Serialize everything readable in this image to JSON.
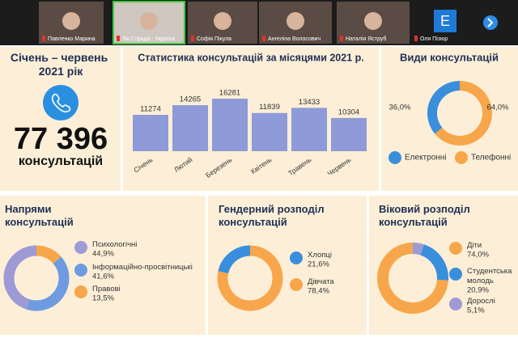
{
  "participants": [
    {
      "name": "Павленко Марина"
    },
    {
      "name": "Ля Страда - Україна"
    },
    {
      "name": "Софія Пікула"
    },
    {
      "name": "Ангеліна Волосович"
    },
    {
      "name": "Наталія Яструб"
    },
    {
      "name": "Оля Пізюр",
      "initial": "E"
    }
  ],
  "header": {
    "period": "Січень – червень 2021 рік",
    "total": "77 396",
    "total_label": "консультацій"
  },
  "chart_data": [
    {
      "type": "bar",
      "title": "Статистика консультацій за місяцями 2021 р.",
      "categories": [
        "Січень",
        "Лютий",
        "Березень",
        "Квітень",
        "Травень",
        "Червень"
      ],
      "values": [
        11274,
        14265,
        16281,
        11839,
        13433,
        10304
      ],
      "color": "#8e9bd8"
    },
    {
      "type": "pie",
      "title": "Види консультацій",
      "categories": [
        "Електронні",
        "Телефонні"
      ],
      "values": [
        36.0,
        64.0
      ],
      "value_labels": [
        "36,0%",
        "64,0%"
      ],
      "colors": [
        "#3a8fdc",
        "#f7a64c"
      ]
    },
    {
      "type": "pie",
      "title": "Напрями консультацій",
      "categories": [
        "Психологічні",
        "Інформаційно-просвітницькі",
        "Правові"
      ],
      "values": [
        44.9,
        41.6,
        13.5
      ],
      "value_labels": [
        "44,9%",
        "41,6%",
        "13,5%"
      ],
      "colors": [
        "#9d9ad6",
        "#6f9be0",
        "#f7a64c"
      ]
    },
    {
      "type": "pie",
      "title": "Гендерний розподіл консультацій",
      "categories": [
        "Хлопці",
        "Дівчата"
      ],
      "values": [
        21.6,
        78.4
      ],
      "value_labels": [
        "21,6%",
        "78,4%"
      ],
      "colors": [
        "#3a8fdc",
        "#f7a64c"
      ]
    },
    {
      "type": "pie",
      "title": "Віковий розподіл консультацій",
      "categories": [
        "Діти",
        "Студентська молодь",
        "Дорослі"
      ],
      "values": [
        74.0,
        20.9,
        5.1
      ],
      "value_labels": [
        "74,0%",
        "20,9%",
        "5,1%"
      ],
      "colors": [
        "#f7a64c",
        "#3a8fdc",
        "#9d9ad6"
      ]
    }
  ]
}
